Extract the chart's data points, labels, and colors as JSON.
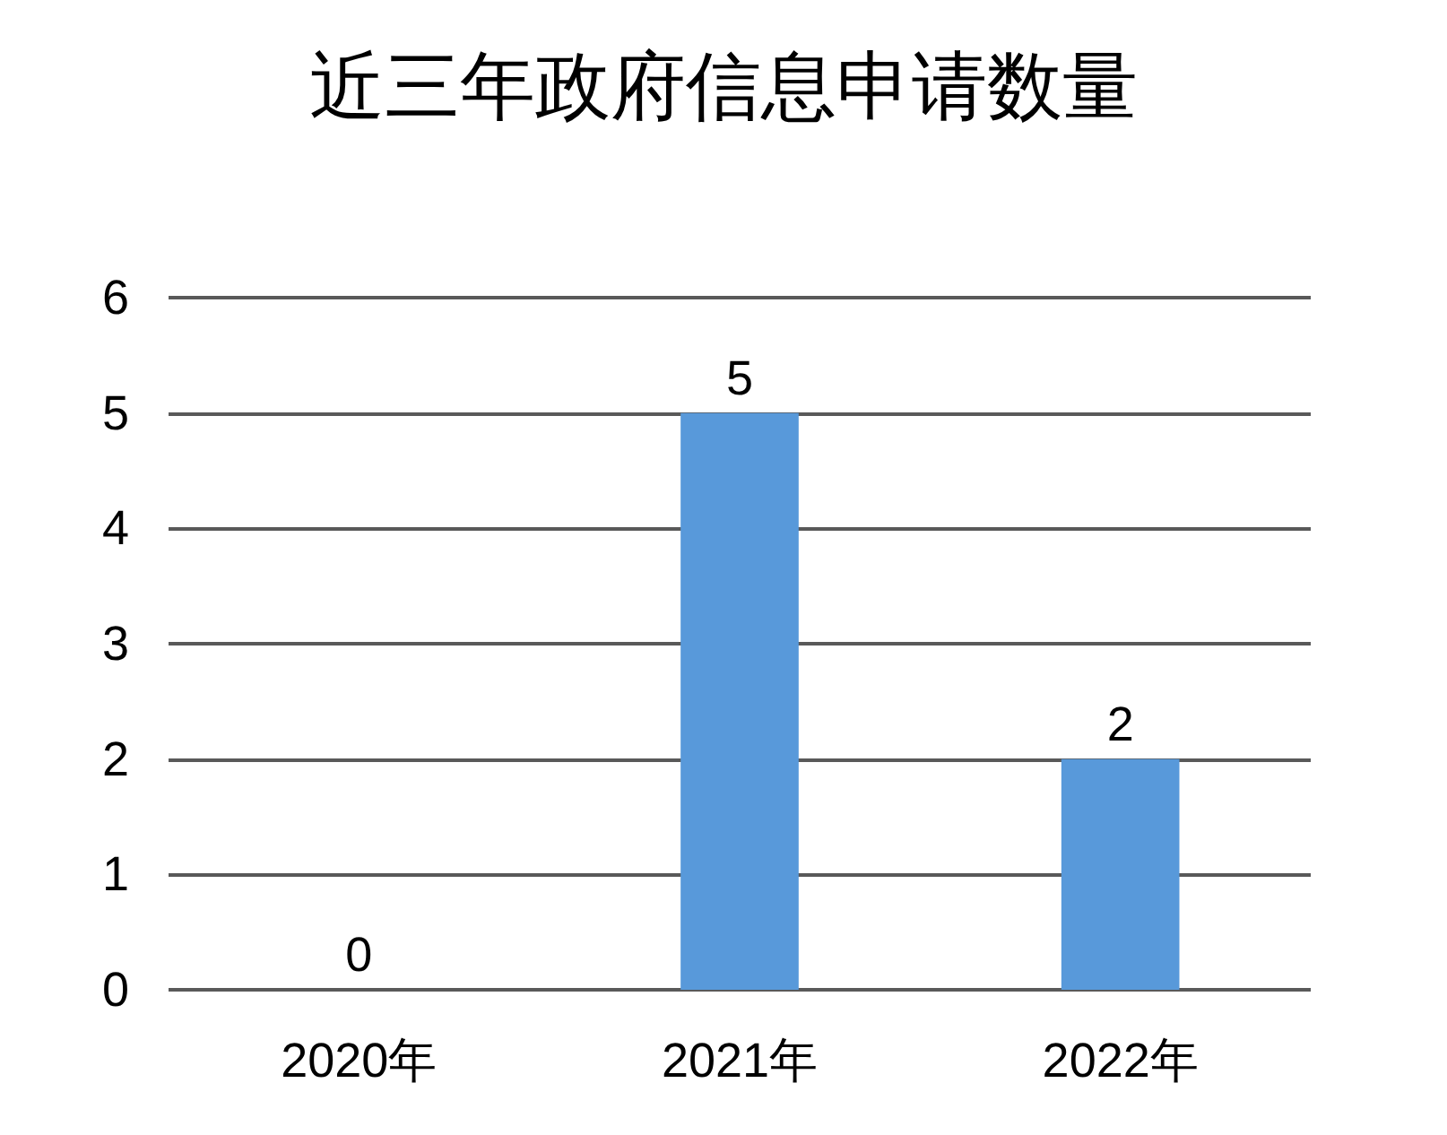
{
  "chart_data": {
    "type": "bar",
    "title": "近三年政府信息申请数量",
    "categories": [
      "2020年",
      "2021年",
      "2022年"
    ],
    "values": [
      0,
      5,
      2
    ],
    "color": "#5899da",
    "ylim": [
      0,
      6
    ],
    "yticks": [
      0,
      1,
      2,
      3,
      4,
      5,
      6
    ],
    "grid": "y",
    "data_labels": true
  }
}
